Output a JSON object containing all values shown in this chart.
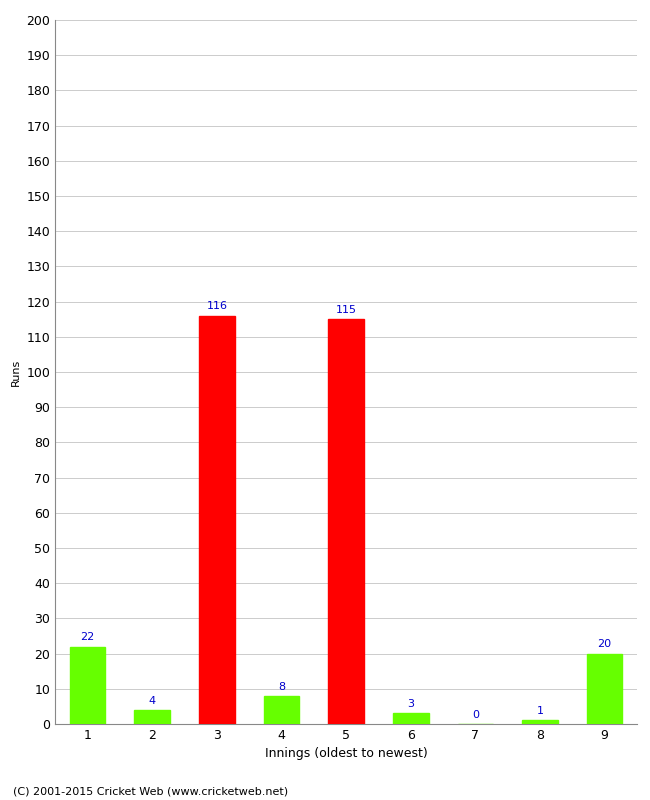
{
  "xlabel": "Innings (oldest to newest)",
  "ylabel": "Runs",
  "categories": [
    "1",
    "2",
    "3",
    "4",
    "5",
    "6",
    "7",
    "8",
    "9"
  ],
  "values": [
    22,
    4,
    116,
    8,
    115,
    3,
    0,
    1,
    20
  ],
  "bar_colors": [
    "#66ff00",
    "#66ff00",
    "#ff0000",
    "#66ff00",
    "#ff0000",
    "#66ff00",
    "#66ff00",
    "#66ff00",
    "#66ff00"
  ],
  "ylim": [
    0,
    200
  ],
  "yticks": [
    0,
    10,
    20,
    30,
    40,
    50,
    60,
    70,
    80,
    90,
    100,
    110,
    120,
    130,
    140,
    150,
    160,
    170,
    180,
    190,
    200
  ],
  "label_color": "#0000cc",
  "label_fontsize": 8,
  "axis_tick_fontsize": 9,
  "xlabel_fontsize": 9,
  "ylabel_fontsize": 8,
  "footer": "(C) 2001-2015 Cricket Web (www.cricketweb.net)",
  "footer_fontsize": 8,
  "background_color": "#ffffff",
  "grid_color": "#cccccc",
  "bar_width": 0.55
}
